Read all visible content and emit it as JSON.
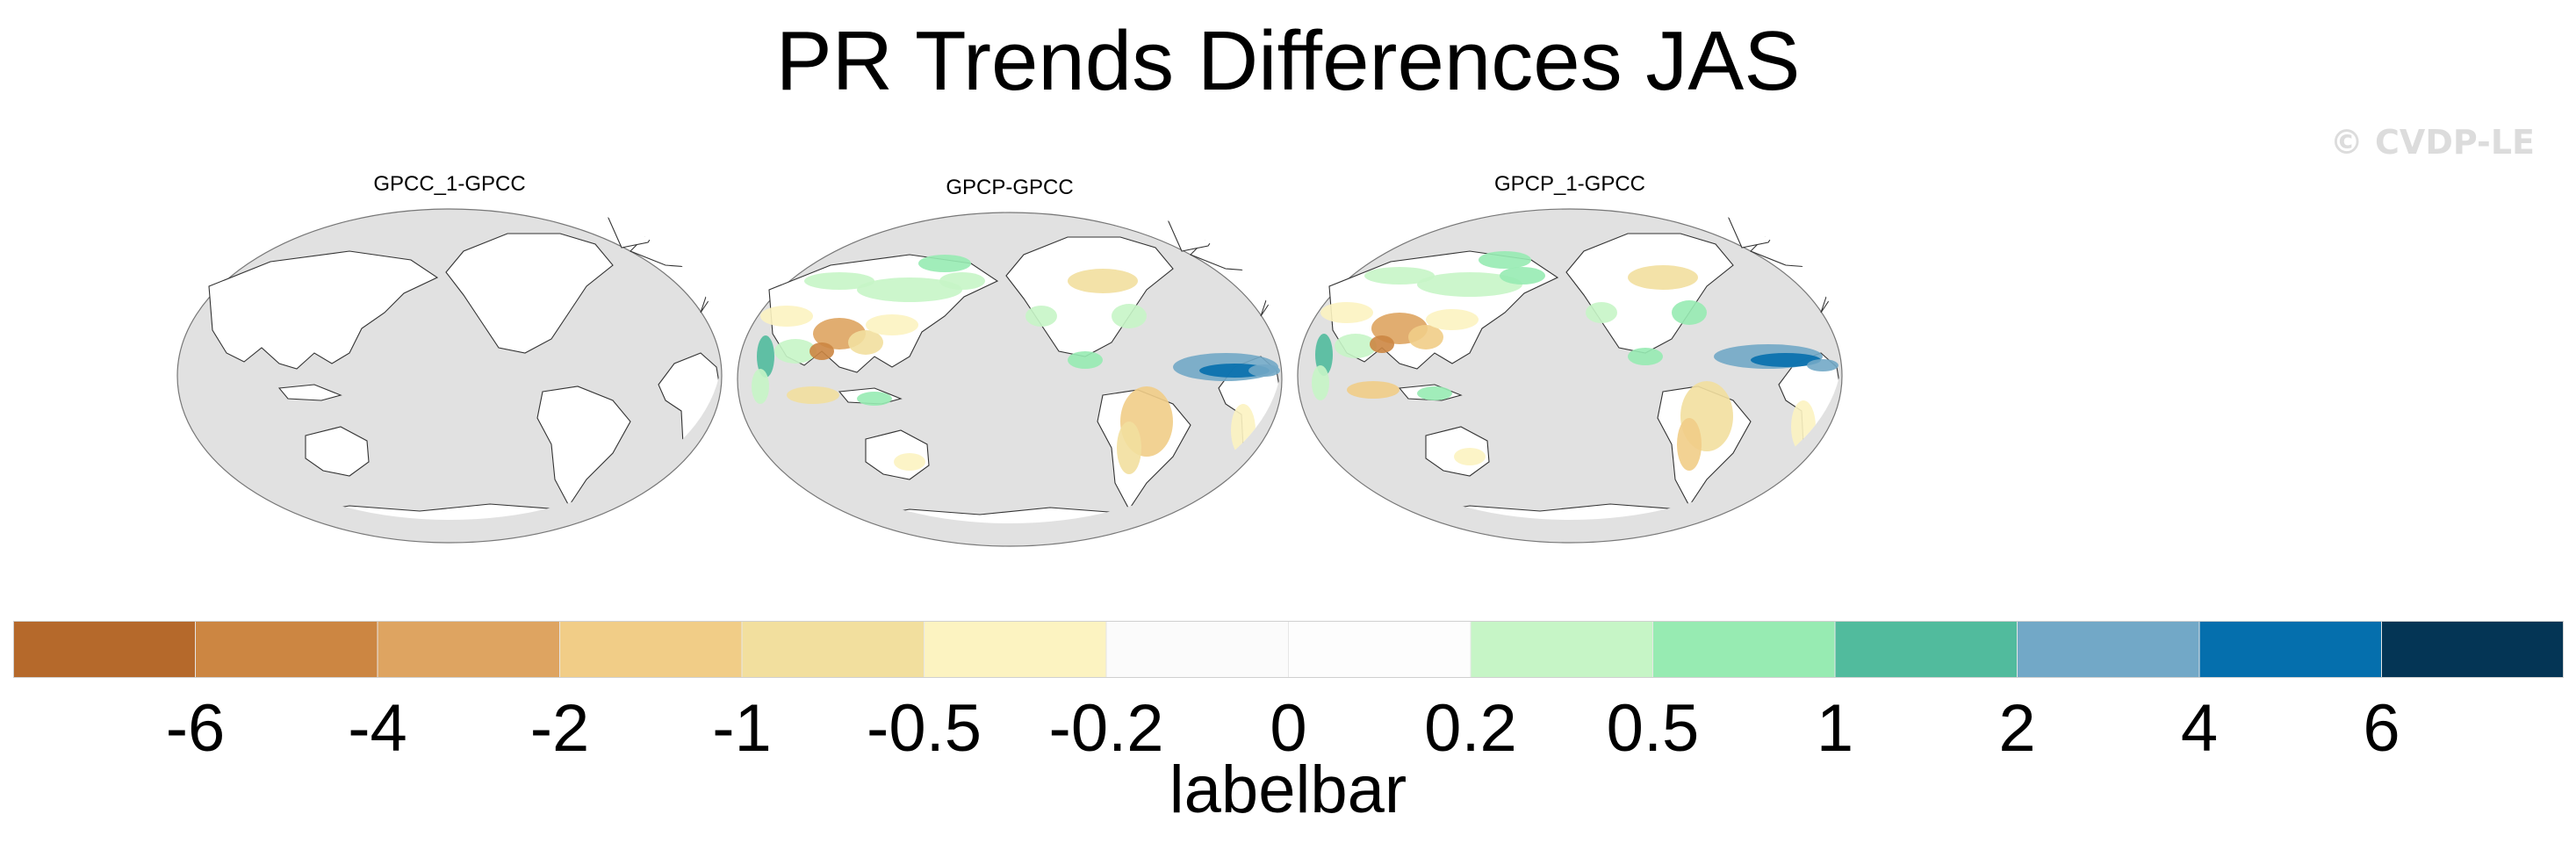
{
  "title": "PR Trends Differences JAS",
  "watermark": "© CVDP-LE",
  "chart_data": {
    "type": "heatmap",
    "title": "PR Trends Differences JAS",
    "projection": "Robinson, Pacific-centered world map",
    "panels": [
      {
        "name": "GPCC_1-GPCC",
        "field": "near-zero differences everywhere (land white)"
      },
      {
        "name": "GPCP-GPCC",
        "field": "mixed positive/negative differences, strong positive band over West Africa/Sahel, negative patches over South Asia"
      },
      {
        "name": "GPCP_1-GPCC",
        "field": "similar to GPCP-GPCC; strong positive band over West Africa, negative patches over South and East Asia"
      }
    ],
    "colorbar": {
      "title": "labelbar",
      "levels": [
        "-6",
        "-4",
        "-2",
        "-1",
        "-0.5",
        "-0.2",
        "0",
        "0.2",
        "0.5",
        "1",
        "2",
        "4",
        "6"
      ],
      "colors": [
        "#b5692b",
        "#cc8642",
        "#dea461",
        "#f1cd87",
        "#f2df9e",
        "#fcf3c1",
        "#fbfbfb",
        "#fdfdfd",
        "#c6f5c6",
        "#97ebb2",
        "#51bb9d",
        "#72a8c7",
        "#056fad",
        "#043555"
      ]
    }
  }
}
